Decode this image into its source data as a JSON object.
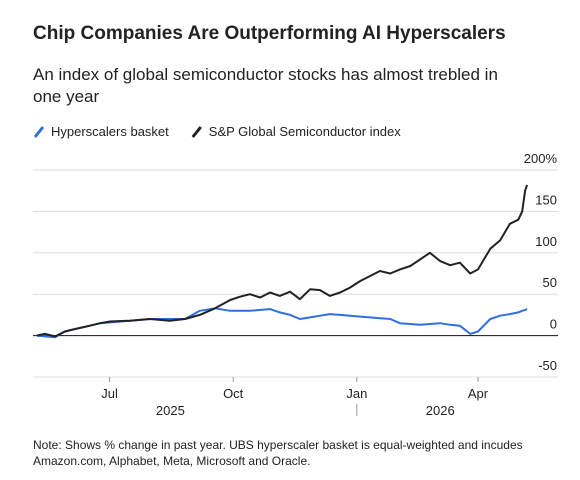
{
  "chart_data": {
    "type": "line",
    "title": "Chip Companies Are Outperforming AI Hyperscalers",
    "subtitle": [
      "An index of global semiconductor stocks has almost trebled in",
      "one year"
    ],
    "note": [
      "Note: Shows % change in past year. UBS hyperscaler basket is equal-weighted and incudes",
      "Amazon.com, Alphabet, Meta, Microsoft and Oracle."
    ],
    "x": [
      2025.348,
      2025.364,
      2025.385,
      2025.405,
      2025.426,
      2025.456,
      2025.477,
      2025.497,
      2025.538,
      2025.578,
      2025.619,
      2025.65,
      2025.68,
      2025.711,
      2025.742,
      2025.762,
      2025.782,
      2025.803,
      2025.823,
      2025.843,
      2025.864,
      2025.884,
      2025.905,
      2025.925,
      2025.945,
      2025.966,
      2025.986,
      2026.007,
      2026.027,
      2026.047,
      2026.068,
      2026.088,
      2026.109,
      2026.129,
      2026.149,
      2026.17,
      2026.19,
      2026.21,
      2026.231,
      2026.247,
      2026.272,
      2026.292,
      2026.312,
      2026.329,
      2026.337,
      2026.343,
      2026.347
    ],
    "series": [
      {
        "name": "Hyperscalers basket",
        "color": "#2f6fe0",
        "values": [
          0,
          -1,
          -2,
          5,
          8,
          12,
          15,
          16,
          18,
          20,
          20,
          20,
          30,
          33,
          30,
          30,
          30,
          31,
          32,
          28,
          25,
          20,
          22,
          24,
          26,
          25,
          24,
          23,
          22,
          21,
          20,
          15,
          14,
          13,
          14,
          15,
          13,
          12,
          2,
          5,
          20,
          24,
          26,
          28,
          30,
          31,
          32
        ]
      },
      {
        "name": "S&P Global Semiconductor index",
        "color": "#222222",
        "values": [
          0,
          2,
          -1,
          5,
          8,
          12,
          15,
          17,
          18,
          20,
          18,
          20,
          25,
          33,
          43,
          47,
          50,
          46,
          52,
          48,
          53,
          44,
          56,
          55,
          48,
          52,
          58,
          66,
          72,
          78,
          75,
          80,
          84,
          92,
          100,
          90,
          85,
          88,
          75,
          80,
          105,
          115,
          135,
          140,
          150,
          175,
          182
        ]
      }
    ],
    "xlim": [
      2025.34,
      2026.41
    ],
    "xticks": [
      {
        "value": 2025.496,
        "label": "Jul"
      },
      {
        "value": 2025.748,
        "label": "Oct"
      },
      {
        "value": 2026.0,
        "label": "Jan"
      },
      {
        "value": 2026.247,
        "label": "Apr"
      }
    ],
    "xgroups": [
      {
        "value": 2025.62,
        "label": "2025"
      },
      {
        "value": 2026.17,
        "label": "2026"
      }
    ],
    "ylim": [
      -50,
      200
    ],
    "yticks": [
      {
        "value": 200,
        "label": "200%"
      },
      150,
      100,
      50,
      0,
      -50
    ],
    "grid": true
  }
}
